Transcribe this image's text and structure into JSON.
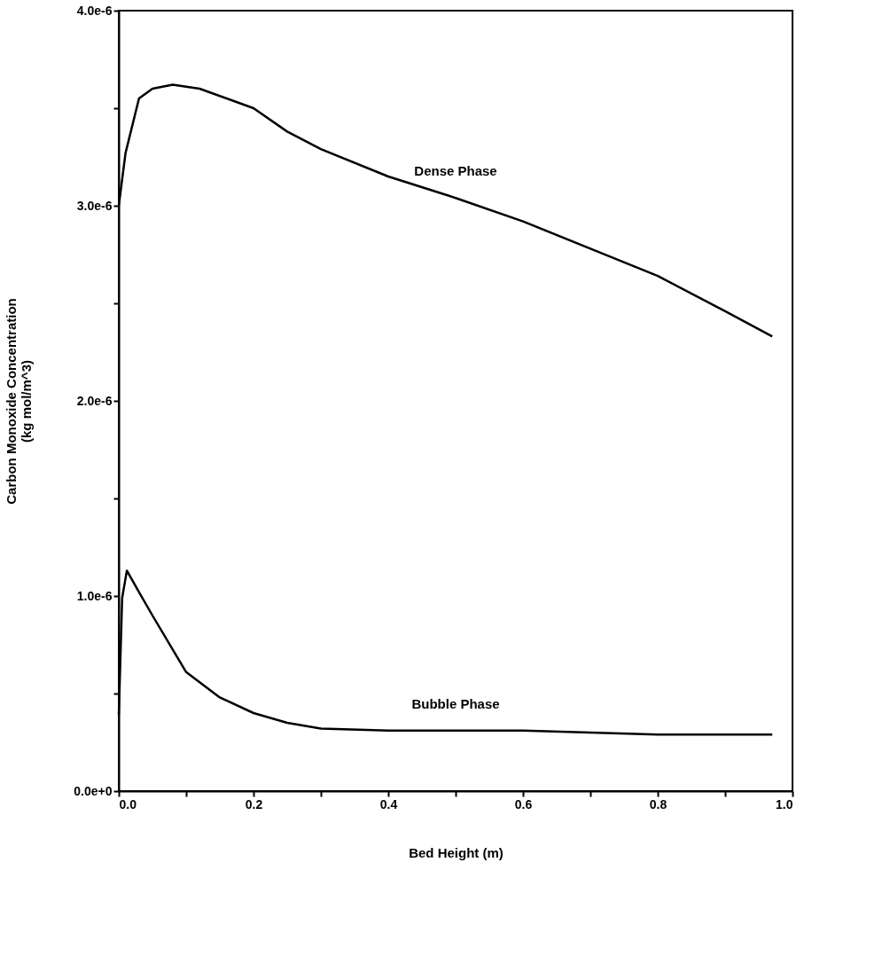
{
  "chart_data": {
    "type": "line",
    "xlabel": "Bed Height (m)",
    "ylabel": "Carbon Monoxide Concentration\n(kg mol/m^3)",
    "xlim": [
      0,
      1.0
    ],
    "ylim": [
      0,
      4e-06
    ],
    "xticks": [
      {
        "value": 0,
        "label": "0.0"
      },
      {
        "value": 0.1,
        "label": null
      },
      {
        "value": 0.2,
        "label": "0.2"
      },
      {
        "value": 0.3,
        "label": null
      },
      {
        "value": 0.4,
        "label": "0.4"
      },
      {
        "value": 0.5,
        "label": null
      },
      {
        "value": 0.6,
        "label": "0.6"
      },
      {
        "value": 0.7,
        "label": null
      },
      {
        "value": 0.8,
        "label": "0.8"
      },
      {
        "value": 0.9,
        "label": null
      },
      {
        "value": 1.0,
        "label": "1.0"
      }
    ],
    "yticks": [
      {
        "value": 0,
        "label": "0.0e+0"
      },
      {
        "value": 5e-07,
        "label": null
      },
      {
        "value": 1e-06,
        "label": "1.0e-6"
      },
      {
        "value": 1.5e-06,
        "label": null
      },
      {
        "value": 2e-06,
        "label": "2.0e-6"
      },
      {
        "value": 2.5e-06,
        "label": null
      },
      {
        "value": 3e-06,
        "label": "3.0e-6"
      },
      {
        "value": 3.5e-06,
        "label": null
      },
      {
        "value": 4e-06,
        "label": "4.0e-6"
      }
    ],
    "grid": false,
    "legend": false,
    "marker": "none",
    "line_style": "solid",
    "series": [
      {
        "name": "Dense Phase",
        "color": "#000000",
        "x": [
          0,
          0.01,
          0.03,
          0.05,
          0.08,
          0.12,
          0.2,
          0.25,
          0.3,
          0.4,
          0.5,
          0.6,
          0.7,
          0.8,
          0.9,
          0.97
        ],
        "values": [
          3e-06,
          3.27e-06,
          3.55e-06,
          3.6e-06,
          3.62e-06,
          3.6e-06,
          3.5e-06,
          3.38e-06,
          3.29e-06,
          3.15e-06,
          3.04e-06,
          2.92e-06,
          2.78e-06,
          2.64e-06,
          2.46e-06,
          2.33e-06
        ]
      },
      {
        "name": "Bubble Phase",
        "color": "#000000",
        "x": [
          0,
          0.005,
          0.012,
          0.03,
          0.05,
          0.1,
          0.15,
          0.2,
          0.25,
          0.3,
          0.4,
          0.5,
          0.6,
          0.7,
          0.8,
          0.97
        ],
        "values": [
          3.9e-07,
          9.9e-07,
          1.13e-06,
          1.02e-06,
          9e-07,
          6.1e-07,
          4.8e-07,
          4e-07,
          3.5e-07,
          3.2e-07,
          3.1e-07,
          3.1e-07,
          3.1e-07,
          3e-07,
          2.9e-07,
          2.9e-07
        ]
      }
    ]
  }
}
